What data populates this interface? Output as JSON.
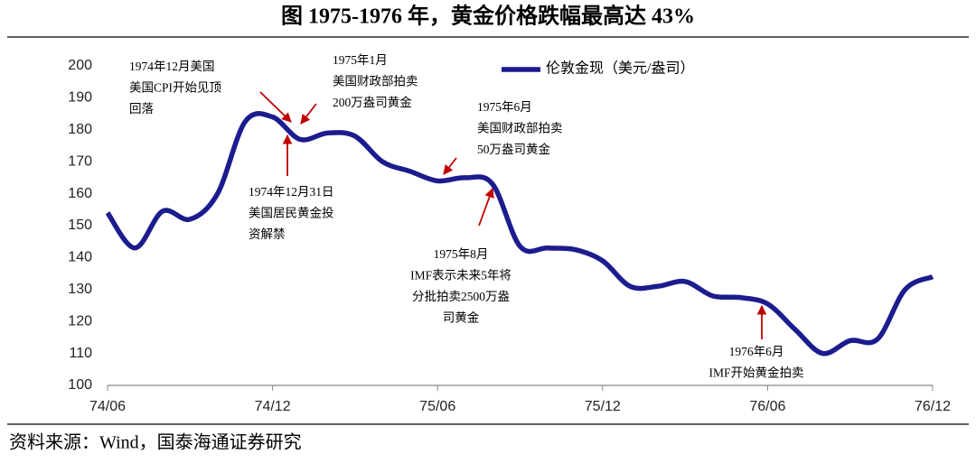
{
  "chart_data": {
    "type": "line",
    "title": "图 1975-1976 年，黄金价格跌幅最高达 43%",
    "source": "资料来源：Wind，国泰海通证券研究",
    "categories": [
      "74/06",
      null,
      null,
      null,
      null,
      null,
      "74/12",
      null,
      null,
      null,
      null,
      null,
      "75/06",
      null,
      null,
      null,
      null,
      null,
      "75/12",
      null,
      null,
      null,
      null,
      null,
      "76/06",
      null,
      null,
      null,
      null,
      null,
      "76/12"
    ],
    "series": [
      {
        "name": "伦敦金现（美元/盎司）",
        "color": "#1c1c8f",
        "values": [
          154,
          143,
          154.5,
          152,
          160,
          182.5,
          184,
          177,
          179,
          178,
          170,
          167,
          164,
          165,
          163,
          143.5,
          143,
          142.5,
          139,
          131,
          131,
          132.5,
          128,
          127.5,
          125.5,
          117.5,
          110,
          114,
          114.5,
          130,
          134
        ]
      }
    ],
    "ylim": [
      100,
      200
    ],
    "yticks": [
      100,
      110,
      120,
      130,
      140,
      150,
      160,
      170,
      180,
      190,
      200
    ],
    "annotations": [
      [
        "1974年12月美国",
        "美国CPI开始见顶",
        "回落"
      ],
      [
        "1975年1月",
        "美国财政部拍卖",
        "200万盎司黄金"
      ],
      [
        "1975年6月",
        "美国财政部拍卖",
        "50万盎司黄金"
      ],
      [
        "1974年12月31日",
        "美国居民黄金投",
        "资解禁"
      ],
      [
        "1975年8月",
        "IMF表示未来5年将",
        "分批拍卖2500万盎",
        "司黄金"
      ],
      [
        "1976年6月",
        "IMF开始黄金拍卖"
      ]
    ]
  }
}
